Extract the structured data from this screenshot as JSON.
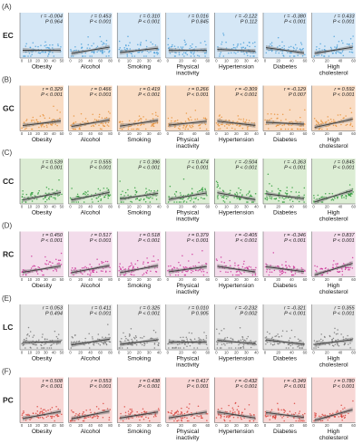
{
  "figure": {
    "rows": [
      {
        "panel": "(A)",
        "label": "EC",
        "color": "#4a9fd8",
        "bg": "#d5e7f6",
        "r": [
          "-0.004",
          "0.453",
          "0.310",
          "0.016",
          "-0.122",
          "-0.380",
          "0.433"
        ],
        "p": [
          "0.964",
          "< 0.001",
          "< 0.001",
          "0.845",
          "0.112",
          "< 0.001",
          "< 0.001"
        ]
      },
      {
        "panel": "(B)",
        "label": "GC",
        "color": "#e8923a",
        "bg": "#f9dcc4",
        "r": [
          "0.329",
          "0.466",
          "0.419",
          "0.266",
          "-0.309",
          "-0.129",
          "0.592"
        ],
        "p": [
          "< 0.001",
          "< 0.001",
          "< 0.001",
          "< 0.001",
          "< 0.001",
          "0.007",
          "< 0.001"
        ]
      },
      {
        "panel": "(C)",
        "label": "CC",
        "color": "#2e9b3a",
        "bg": "#dcedd4",
        "r": [
          "0.539",
          "0.555",
          "0.396",
          "0.474",
          "-0.504",
          "-0.363",
          "0.845"
        ],
        "p": [
          "< 0.001",
          "< 0.001",
          "< 0.001",
          "< 0.001",
          "< 0.001",
          "< 0.001",
          "< 0.001"
        ]
      },
      {
        "panel": "(D)",
        "label": "RC",
        "color": "#cc3399",
        "bg": "#f3dceb",
        "r": [
          "0.450",
          "0.517",
          "0.518",
          "0.379",
          "-0.405",
          "-0.346",
          "0.837"
        ],
        "p": [
          "< 0.001",
          "< 0.001",
          "< 0.001",
          "< 0.001",
          "< 0.001",
          "< 0.001",
          "< 0.001"
        ]
      },
      {
        "panel": "(E)",
        "label": "LC",
        "color": "#777777",
        "bg": "#e6e6e6",
        "r": [
          "0.053",
          "0.411",
          "0.325",
          "0.010",
          "-0.232",
          "-0.321",
          "0.355"
        ],
        "p": [
          "0.494",
          "< 0.001",
          "< 0.001",
          "0.905",
          "0.002",
          "< 0.001",
          "< 0.001"
        ]
      },
      {
        "panel": "(F)",
        "label": "PC",
        "color": "#d9423b",
        "bg": "#f8d7d5",
        "r": [
          "0.508",
          "0.553",
          "0.438",
          "0.417",
          "-0.432",
          "-0.349",
          "0.780"
        ],
        "p": [
          "< 0.001",
          "< 0.001",
          "< 0.001",
          "< 0.001",
          "< 0.001",
          "< 0.001",
          "< 0.001"
        ]
      }
    ],
    "factors": [
      {
        "name": "Obesity",
        "ticks": [
          "0",
          "10",
          "20",
          "30",
          "40",
          "50"
        ]
      },
      {
        "name": "Alcohol",
        "ticks": [
          "0",
          "20",
          "40",
          "60",
          "80"
        ]
      },
      {
        "name": "Smoking",
        "ticks": [
          "0",
          "10",
          "20",
          "30",
          "40"
        ]
      },
      {
        "name": "Physical inactivity",
        "ticks": [
          "0",
          "20",
          "40",
          "60"
        ]
      },
      {
        "name": "Hypertension",
        "ticks": [
          "0",
          "10",
          "20",
          "30",
          "40"
        ]
      },
      {
        "name": "Diabetes",
        "ticks": [
          "0",
          "20",
          "40",
          "60"
        ]
      },
      {
        "name": "High cholesterol",
        "ticks": [
          "0",
          "20",
          "40",
          "60"
        ]
      }
    ],
    "r_prefix": "r = ",
    "p_prefix": "P "
  },
  "chart_data": {
    "type": "scatter",
    "rows": [
      "EC",
      "GC",
      "CC",
      "RC",
      "LC",
      "PC"
    ],
    "columns": [
      "Obesity",
      "Alcohol",
      "Smoking",
      "Physical inactivity",
      "Hypertension",
      "Diabetes",
      "High cholesterol"
    ],
    "r": [
      [
        -0.004,
        0.453,
        0.31,
        0.016,
        -0.122,
        -0.38,
        0.433
      ],
      [
        0.329,
        0.466,
        0.419,
        0.266,
        -0.309,
        -0.129,
        0.592
      ],
      [
        0.539,
        0.555,
        0.396,
        0.474,
        -0.504,
        -0.363,
        0.845
      ],
      [
        0.45,
        0.517,
        0.518,
        0.379,
        -0.405,
        -0.346,
        0.837
      ],
      [
        0.053,
        0.411,
        0.325,
        0.01,
        -0.232,
        -0.321,
        0.355
      ],
      [
        0.508,
        0.553,
        0.438,
        0.417,
        -0.432,
        -0.349,
        0.78
      ]
    ],
    "p": [
      [
        "0.964",
        "< 0.001",
        "< 0.001",
        "0.845",
        "0.112",
        "< 0.001",
        "< 0.001"
      ],
      [
        "< 0.001",
        "< 0.001",
        "< 0.001",
        "< 0.001",
        "< 0.001",
        "0.007",
        "< 0.001"
      ],
      [
        "< 0.001",
        "< 0.001",
        "< 0.001",
        "< 0.001",
        "< 0.001",
        "< 0.001",
        "< 0.001"
      ],
      [
        "< 0.001",
        "< 0.001",
        "< 0.001",
        "< 0.001",
        "< 0.001",
        "< 0.001",
        "< 0.001"
      ],
      [
        "0.494",
        "< 0.001",
        "< 0.001",
        "0.905",
        "0.002",
        "< 0.001",
        "< 0.001"
      ],
      [
        "< 0.001",
        "< 0.001",
        "< 0.001",
        "< 0.001",
        "< 0.001",
        "< 0.001",
        "< 0.001"
      ]
    ]
  }
}
